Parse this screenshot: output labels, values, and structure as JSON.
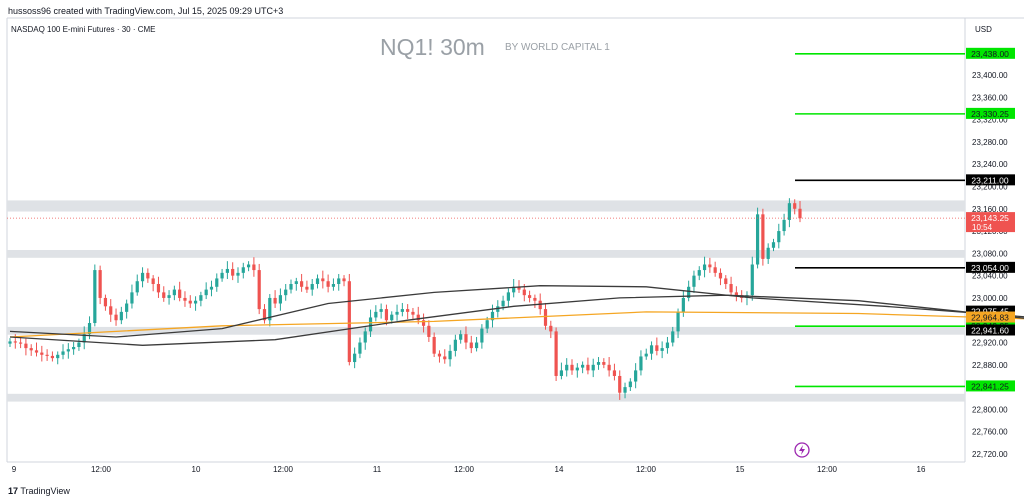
{
  "header": {
    "credit": "hussoss96 created with TradingView.com, Jul 15, 2025 09:29 UTC+3",
    "instrument": "NASDAQ 100 E-mini Futures · 30 · CME"
  },
  "watermark": {
    "title": "NQ1! 30m",
    "subtitle": "BY WORLD CAPITAL 1"
  },
  "axis": {
    "currency": "USD"
  },
  "footer": {
    "brand": "TradingView"
  },
  "colors": {
    "up": "#26a69a",
    "down": "#ef5350",
    "green_level": "#00e600",
    "black_level": "#000000",
    "orange_ma": "#f5a623",
    "grey_ma": "#3b3b3b",
    "zone": "#dfe2e6"
  },
  "chart_data": {
    "type": "candlestick",
    "title": "NQ1! 30m",
    "ylim": [
      22700,
      23500
    ],
    "price_ticks": [
      "23,400.00",
      "23,360.00",
      "23,320.00",
      "23,280.00",
      "23,240.00",
      "23,200.00",
      "23,160.00",
      "23,120.00",
      "23,080.00",
      "23,040.00",
      "23,000.00",
      "22,960.00",
      "22,920.00",
      "22,880.00",
      "22,840.00",
      "22,800.00",
      "22,760.00",
      "22,720.00"
    ],
    "time_ticks": [
      "9",
      "12:00",
      "10",
      "12:00",
      "11",
      "12:00",
      "14",
      "12:00",
      "15",
      "12:00",
      "16"
    ],
    "level_lines": [
      {
        "value": 23438.0,
        "label": "23,438.00",
        "color": "green"
      },
      {
        "value": 23330.25,
        "label": "23,330.25",
        "color": "green"
      },
      {
        "value": 23211.0,
        "label": "23,211.00",
        "color": "black"
      },
      {
        "value": 23054.0,
        "label": "23,054.00",
        "color": "black"
      },
      {
        "value": 22949.25,
        "label": "22,949.25",
        "color": "green"
      },
      {
        "value": 22841.25,
        "label": "22,841.25",
        "color": "green"
      }
    ],
    "price_labels": [
      {
        "value": 23143.25,
        "label": "23,143.25",
        "sub": "10:54",
        "color": "red"
      },
      {
        "value": 22975.45,
        "label": "22,975.45",
        "color": "black"
      },
      {
        "value": 22964.83,
        "label": "22,964.83",
        "color": "orange"
      },
      {
        "value": 22941.6,
        "label": "22,941.60",
        "color": "black"
      }
    ],
    "current_price": 23143.25,
    "zones": [
      {
        "low": 23155,
        "high": 23175
      },
      {
        "low": 23072,
        "high": 23086
      },
      {
        "low": 22934,
        "high": 22948
      },
      {
        "low": 22814,
        "high": 22828
      }
    ],
    "closes": [
      22922,
      22920,
      22918,
      22910,
      22906,
      22902,
      22898,
      22896,
      22892,
      22898,
      22904,
      22908,
      22912,
      22920,
      22935,
      22955,
      23050,
      23000,
      22985,
      22970,
      22960,
      22975,
      22990,
      23010,
      23030,
      23045,
      23035,
      23025,
      23010,
      23000,
      23005,
      23015,
      23000,
      22995,
      22990,
      22995,
      23005,
      23015,
      23020,
      23035,
      23045,
      23052,
      23040,
      23045,
      23055,
      23060,
      23050,
      22980,
      22960,
      23000,
      22990,
      23005,
      23015,
      23025,
      23030,
      23020,
      23015,
      23025,
      23035,
      23030,
      23020,
      23025,
      23035,
      23030,
      22885,
      22900,
      22920,
      22940,
      22965,
      22975,
      22980,
      22960,
      22970,
      22975,
      22980,
      22975,
      22970,
      22960,
      22950,
      22930,
      22900,
      22895,
      22890,
      22905,
      22925,
      22935,
      22920,
      22910,
      22920,
      22945,
      22960,
      22975,
      22985,
      22995,
      23010,
      23020,
      23015,
      23005,
      23000,
      22995,
      22980,
      22950,
      22940,
      22860,
      22870,
      22880,
      22870,
      22875,
      22880,
      22870,
      22880,
      22885,
      22880,
      22870,
      22860,
      22830,
      22840,
      22850,
      22870,
      22895,
      22900,
      22915,
      22905,
      22910,
      22920,
      22940,
      22975,
      23000,
      23020,
      23040,
      23050,
      23060,
      23055,
      23045,
      23035,
      23025,
      23010,
      23005,
      23000,
      23005,
      23060,
      23150,
      23070,
      23090,
      23100,
      23120,
      23140,
      23170,
      23160,
      23143
    ],
    "ma_orange": [
      [
        0,
        22930
      ],
      [
        40,
        22950
      ],
      [
        80,
        22958
      ],
      [
        120,
        22975
      ],
      [
        160,
        22972
      ],
      [
        200,
        22960
      ],
      [
        260,
        22958
      ],
      [
        300,
        22968
      ],
      [
        348,
        22972
      ]
    ],
    "ma_black_fast": [
      [
        0,
        22940
      ],
      [
        20,
        22930
      ],
      [
        40,
        22945
      ],
      [
        60,
        22990
      ],
      [
        80,
        23010
      ],
      [
        100,
        23022
      ],
      [
        120,
        23020
      ],
      [
        140,
        23000
      ],
      [
        165,
        22985
      ],
      [
        200,
        22960
      ],
      [
        230,
        22935
      ],
      [
        250,
        22925
      ],
      [
        270,
        22935
      ],
      [
        290,
        22950
      ],
      [
        320,
        22975
      ],
      [
        348,
        22998
      ]
    ],
    "ma_black_slow": [
      [
        0,
        22930
      ],
      [
        25,
        22915
      ],
      [
        50,
        22925
      ],
      [
        75,
        22960
      ],
      [
        95,
        22985
      ],
      [
        115,
        23000
      ],
      [
        135,
        23005
      ],
      [
        160,
        22995
      ],
      [
        185,
        22970
      ],
      [
        210,
        22945
      ],
      [
        240,
        22910
      ],
      [
        260,
        22900
      ],
      [
        280,
        22905
      ],
      [
        300,
        22920
      ],
      [
        325,
        22945
      ],
      [
        348,
        22985
      ]
    ]
  }
}
